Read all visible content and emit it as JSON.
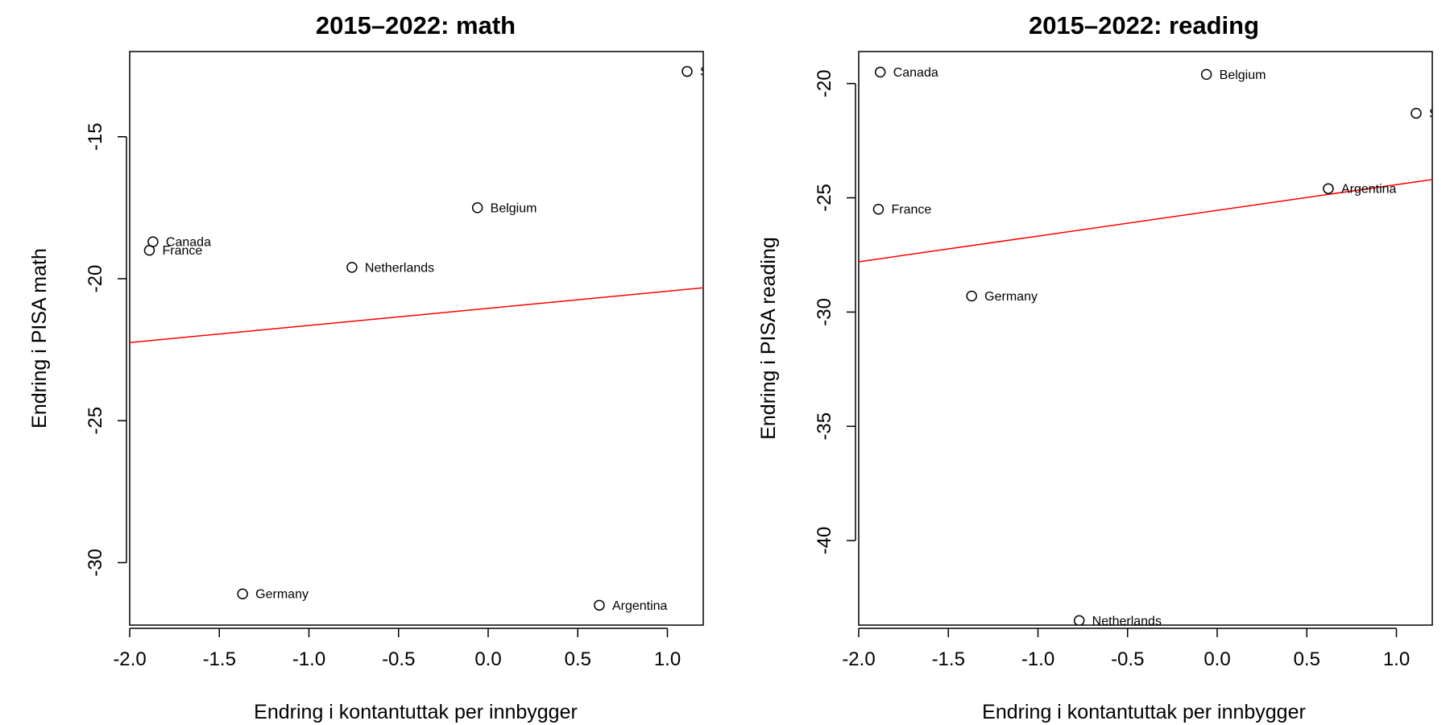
{
  "chart_data": [
    {
      "type": "scatter",
      "title": "2015–2022: math",
      "xlabel": "Endring i kontantuttak per innbygger",
      "ylabel": "Endring i PISA math",
      "xlim": [
        -2.0,
        1.2
      ],
      "ylim": [
        -32.2,
        -12.0
      ],
      "x_ticks": [
        -2.0,
        -1.5,
        -1.0,
        -0.5,
        0.0,
        0.5,
        1.0
      ],
      "x_tick_labels": [
        "-2.0",
        "-1.5",
        "-1.0",
        "-0.5",
        "0.0",
        "0.5",
        "1.0"
      ],
      "y_ticks": [
        -30,
        -25,
        -20,
        -15
      ],
      "y_tick_labels": [
        "-30",
        "-25",
        "-20",
        "-15"
      ],
      "grid": false,
      "points": [
        {
          "label": "S",
          "x": 1.11,
          "y": -12.7
        },
        {
          "label": "Belgium",
          "x": -0.06,
          "y": -17.5
        },
        {
          "label": "Canada",
          "x": -1.87,
          "y": -18.7
        },
        {
          "label": "France",
          "x": -1.89,
          "y": -19.0
        },
        {
          "label": "Netherlands",
          "x": -0.76,
          "y": -19.6
        },
        {
          "label": "Germany",
          "x": -1.37,
          "y": -31.1
        },
        {
          "label": "Argentina",
          "x": 0.62,
          "y": -31.5
        }
      ],
      "fit_line": {
        "color": "#ff0000",
        "x": [
          -2.0,
          1.2
        ],
        "y": [
          -22.25,
          -20.32
        ]
      }
    },
    {
      "type": "scatter",
      "title": "2015–2022: reading",
      "xlabel": "Endring i kontantuttak per innbygger",
      "ylabel": "Endring i PISA reading",
      "xlim": [
        -2.0,
        1.2
      ],
      "ylim": [
        -43.7,
        -18.6
      ],
      "x_ticks": [
        -2.0,
        -1.5,
        -1.0,
        -0.5,
        0.0,
        0.5,
        1.0
      ],
      "x_tick_labels": [
        "-2.0",
        "-1.5",
        "-1.0",
        "-0.5",
        "0.0",
        "0.5",
        "1.0"
      ],
      "y_ticks": [
        -40,
        -35,
        -30,
        -25,
        -20
      ],
      "y_tick_labels": [
        "-40",
        "-35",
        "-30",
        "-25",
        "-20"
      ],
      "grid": false,
      "points": [
        {
          "label": "Canada",
          "x": -1.88,
          "y": -19.5
        },
        {
          "label": "Belgium",
          "x": -0.06,
          "y": -19.6
        },
        {
          "label": "S",
          "x": 1.11,
          "y": -21.3
        },
        {
          "label": "Argentina",
          "x": 0.62,
          "y": -24.6
        },
        {
          "label": "France",
          "x": -1.89,
          "y": -25.5
        },
        {
          "label": "Germany",
          "x": -1.37,
          "y": -29.3
        },
        {
          "label": "Netherlands",
          "x": -0.77,
          "y": -43.5
        }
      ],
      "fit_line": {
        "color": "#ff0000",
        "x": [
          -2.0,
          1.2
        ],
        "y": [
          -27.8,
          -24.2
        ]
      }
    }
  ]
}
